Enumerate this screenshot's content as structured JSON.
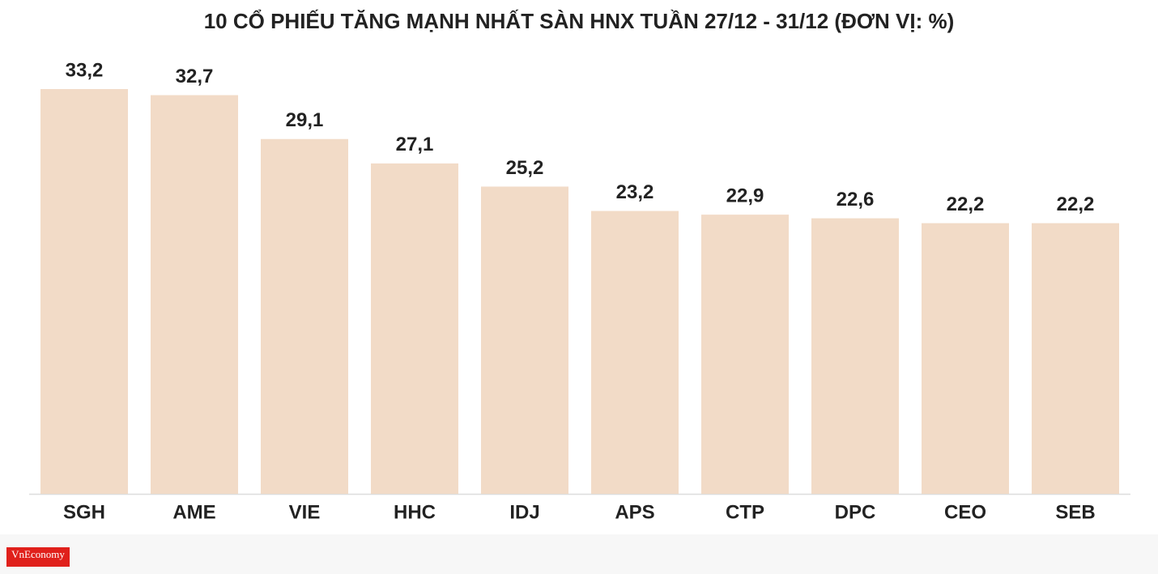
{
  "chart_data": {
    "type": "bar",
    "title": "10 CỔ PHIẾU TĂNG MẠNH NHẤT SÀN HNX TUẦN 27/12 - 31/12 (ĐƠN VỊ: %)",
    "categories": [
      "SGH",
      "AME",
      "VIE",
      "HHC",
      "IDJ",
      "APS",
      "CTP",
      "DPC",
      "CEO",
      "SEB"
    ],
    "values": [
      33.2,
      32.7,
      29.1,
      27.1,
      25.2,
      23.2,
      22.9,
      22.6,
      22.2,
      22.2
    ],
    "value_labels": [
      "33,2",
      "32,7",
      "29,1",
      "27,1",
      "25,2",
      "23,2",
      "22,9",
      "22,6",
      "22,2",
      "22,2"
    ],
    "color": "#f2dbc7"
  },
  "logo": "VnEconomy"
}
